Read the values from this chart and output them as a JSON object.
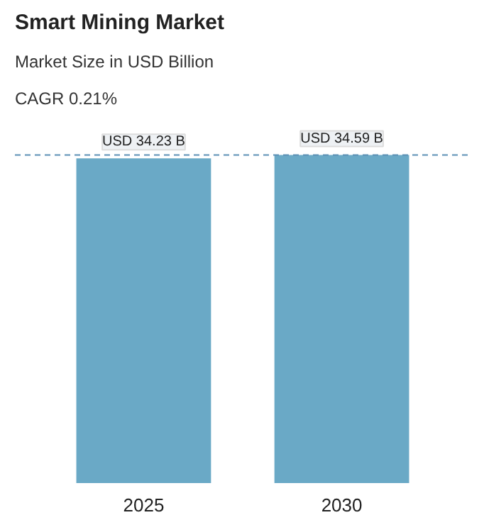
{
  "chart_data": {
    "type": "bar",
    "title": "Smart Mining Market",
    "subtitle": "Market Size in USD Billion",
    "annotations": [
      "CAGR 0.21%"
    ],
    "categories": [
      "2025",
      "2030"
    ],
    "values": [
      34.23,
      34.59
    ],
    "value_labels": [
      "USD 34.23 B",
      "USD 34.59 B"
    ],
    "color": "#6aa9c6",
    "ref_lines": [
      {
        "axis": "y",
        "value": 34.59,
        "label": null,
        "color": "#5b8fb5",
        "line_style": "dashed"
      }
    ],
    "grid": false
  }
}
